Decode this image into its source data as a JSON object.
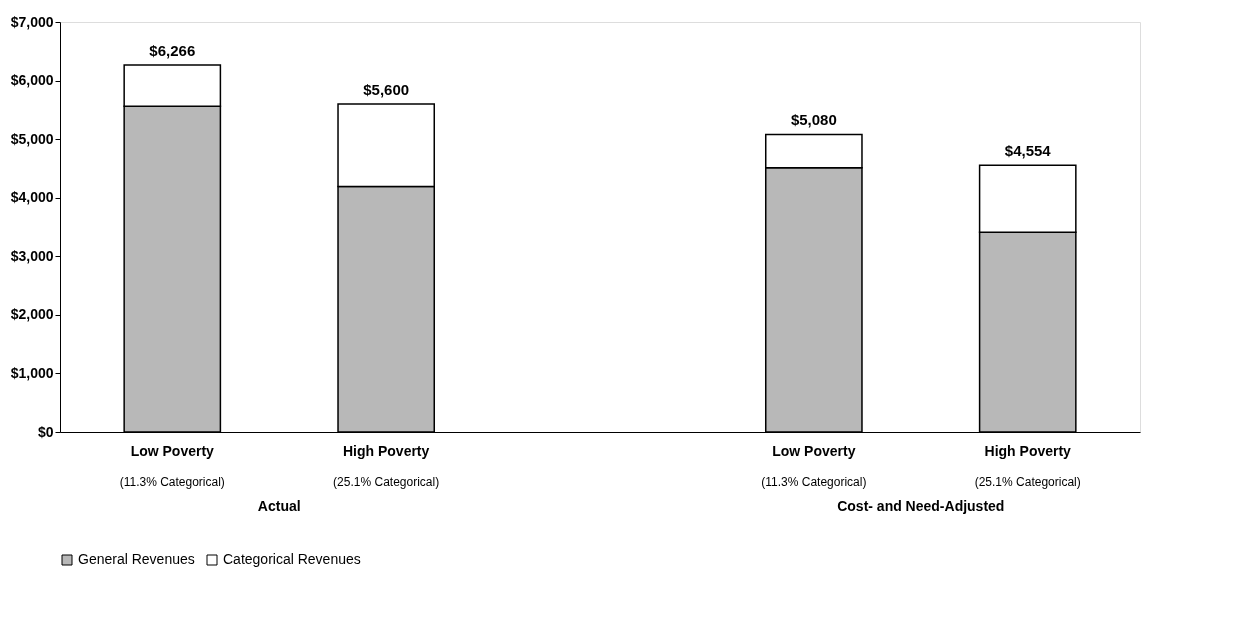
{
  "chart_data": {
    "type": "bar",
    "stacked": true,
    "categories": [
      "Low Poverty",
      "High Poverty",
      null,
      "Low Poverty",
      "High Poverty"
    ],
    "series": [
      {
        "name": "General Revenues",
        "color": "#b8b8b8",
        "values": [
          5560,
          4190,
          null,
          4510,
          3410
        ]
      },
      {
        "name": "Categorical Revenues",
        "color": "#ffffff",
        "values": [
          706,
          1410,
          null,
          570,
          1144
        ]
      }
    ],
    "totals": [
      "$6,266",
      "$5,600",
      null,
      "$5,080",
      "$4,554"
    ],
    "ylim": [
      0,
      7000
    ],
    "yticks": [
      {
        "value": 0,
        "label": "$0"
      },
      {
        "value": 1000,
        "label": "$1,000"
      },
      {
        "value": 2000,
        "label": "$2,000"
      },
      {
        "value": 3000,
        "label": "$3,000"
      },
      {
        "value": 4000,
        "label": "$4,000"
      },
      {
        "value": 5000,
        "label": "$5,000"
      },
      {
        "value": 6000,
        "label": "$6,000"
      },
      {
        "value": 7000,
        "label": "$7,000"
      }
    ],
    "annotations": [
      "(11.3% Categorical)",
      "(25.1% Categorical)",
      "(11.3% Categorical)",
      "(25.1% Categorical)",
      "Actual",
      "Cost- and Need-Adjusted"
    ],
    "grid": false,
    "legend": "bottom"
  }
}
